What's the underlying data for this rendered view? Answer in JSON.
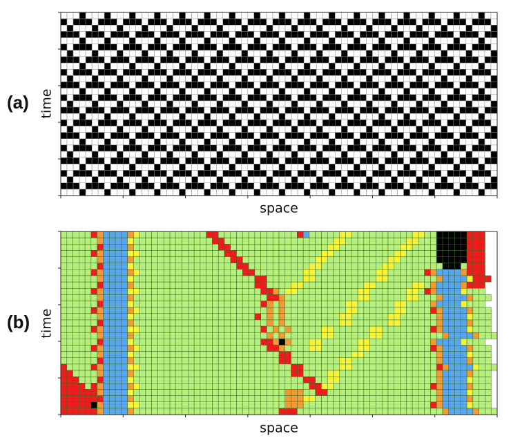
{
  "panels": [
    {
      "label": "(a)",
      "y_label": "time",
      "x_label": "space",
      "colors": {
        "0": "#ffffff",
        "1": "#000000"
      },
      "rows": [
        "0001000100010001000100010001000100010001000100010001000100010001000100",
        "1011101110111011101110111011101110111011101110111011101110111011101110",
        "0100010001000100010001000100010001000100010001000100010001000100010001",
        "1110111011101110111011101110111011101110111011101110111011101110111011",
        "0001000100010001000100010001000100010001000100010001000100010001000100",
        "1011101110111011101110111011101110111011101110111011101110111011101110",
        "0100010001000100010001000100010001000100010001000100010001000100010001",
        "1110111011101110111011101110111011101110111011101110111011101110111011",
        "0001000100010001000100010001000100010001000100010001000100010001000100",
        "1011101110111011101110111011101110111011101110111011101110111011101110",
        "0100010001000100010001000100010001000100010001000100010001000100010001",
        "1110111011101110111011101110111011101110111011101110111011101110111011",
        "0001000100010001000100010001000100010001000100010001000100010001000100",
        "1011101110111011101110111011101110111011101110111011101110111011101110",
        "0100010001000100010001000100010001000100010001000100010001000100010001",
        "1110111011101110111011101110111011101110111011101110111011101110111011",
        "0001000100010001000100010001000100010001000100010001000100010001000100",
        "1011101110111011101110111011101110111011101110111011101110111011101110",
        "0100010001000100010001000100010001000100010001000100010001000100010001",
        "1110111011101110111011101110111011101110111011101110111011101110111011",
        "0001000100010001000100010001000100010001000100010001000100010001000100",
        "1011101110111011101110111011101110111011101110111011101110111011101110",
        "0100010001000100010001000100010001000100010001000100010001000100010001",
        "1110111011101110111011101110111011101110111011101110111011101110111011",
        "0001000100010001000100010001000100010001000100010001000100010001000100",
        "1011101110111011101110111011101110111011101110111011101110111011101110",
        "0100010001000100010001000100010001000100010001000100010001000100010001",
        "1110111011101110111011101110111011101110111011101110111011101110111011",
        "0001000100010001000100010001000100010001000100010001000100010001000100"
      ]
    },
    {
      "label": "(b)",
      "y_label": "time",
      "x_label": "space",
      "colors": {
        "g": "#b6ef7c",
        "r": "#ee1c1c",
        "o": "#f39a34",
        "b": "#5aa6ec",
        "y": "#f7f23a",
        "k": "#000000"
      },
      "rows": [
        "gggggrobbbboygggggggggggrrgggggggggggggrbgggggyyggggggggggyyggkkkkkrrr",
        "ggggggobbbbygggggggggggggrrggggggggggggggggggyyggggggggggyygggkkkkkrrr",
        "ggggggrbbbboggggggggggggggrrggggggggggggggggyyggggggggggyyggggkkkkkrrr",
        "gggggrobbbbyyggggggggggggggrrggggggggggggggyyggggggggggyygggggkkkkkrrr",
        "ggggggobbbboggggggggggggggggrrggggggggggggyyggggggggggyyggggggkkkkkrrr",
        "ggggggrbbbbygggggggggggggggggrrggggggggggyyggggggggggyyggggggggkkkgrrr",
        "gggggrobbbboygggggggggggggggggrrggggggggyyggggggggggyyggggggrobbbborrr",
        "ggggggobbbbyggggggggggggggggggggrrggggggyyggggggggggyyggggggggobbbbyrrr",
        "ggggggrbbbboggggggggggggggggggggrrggggyyggggggggggyyggggggyygobbbborrr",
        "gggggrobbbbyyggggggggggggggggggggrrogyyggggggggggyyggggggyygrobbbbyggg",
        "ggggggobbbboggggggggggggggggggggggrroggggggggggggyyggggggyygggobbbboggg",
        "ggggggrbbbbygggggggggggggggggggggrogoggggggggggyyggggggyyggggobbbbyggg",
        "gggggrobbbboygggggggggggggggggggggogoggggggggggyyggggggyyggggrobbbboggg",
        "ggggggobbbbyggggggggggggggggggggrgogogggggggggyyggggggyyggggggobbbbyggg",
        "ggggggrbbbboggggggggggggggggggggggogogggggggggyyggggggyyggggggobbbboggg",
        "gggggrobbbbyyggggggggggggggggggggrgogogggggyyggggggyyggggggggrobbbbyggg",
        "ggggggobbbboggggggggggggggggggggggogoggggggyyggggggyyggggggggggobbbboggg",
        "ggggggrbbbbygggggggggggggggggggggrrokogggyyggggggyyggggggggggobbbbyggg",
        "gggggrobbbboygggggggggggggggggggggrroggggyyggggggyyggggggggggrobbbboggg",
        "ggggggobbbbyggggggggggggggggggggggggrrggggggggggyyggggggggggggobbbbyggg",
        "ggggggrbbbboggggggggggggggggggggggggrrggggggggyyggggggggggggggobbbboggg",
        "rggggrobbbbyygggggggggggggggggggggggggrrggggggyyggggggggggggggrobbbbyggg",
        "rrggggobbbboggggggggggggggggggggggggggrrggggyyggggggggggggggggobbbboggg",
        "rrrgggrbbbbyggggggggggggggggggggggggggggrrggyyggggggggggggggggobbbbyggg",
        "rrrrgrobbbboyggggggggggggggggggggggggggggrryyggggggggggggggggrobbbboggg",
        "rrrrrrobbbbygggggggggggggggggggggggggoooggrrggggggggggggggggggobbbbyggg",
        "rrrrrrrbbbbogggggggggggggggggggggggggoooyyggggggggggggggggggggobbbboggg",
        "rrrrrkobbbbyyggggggggggggggggggggggggooogggggggggggggggggggggrobbbbyggg",
        "rrrrrrobbbboggggggggggggggggggggggggrrrggggggggggggggggggggggggobbbboggg"
      ]
    }
  ]
}
